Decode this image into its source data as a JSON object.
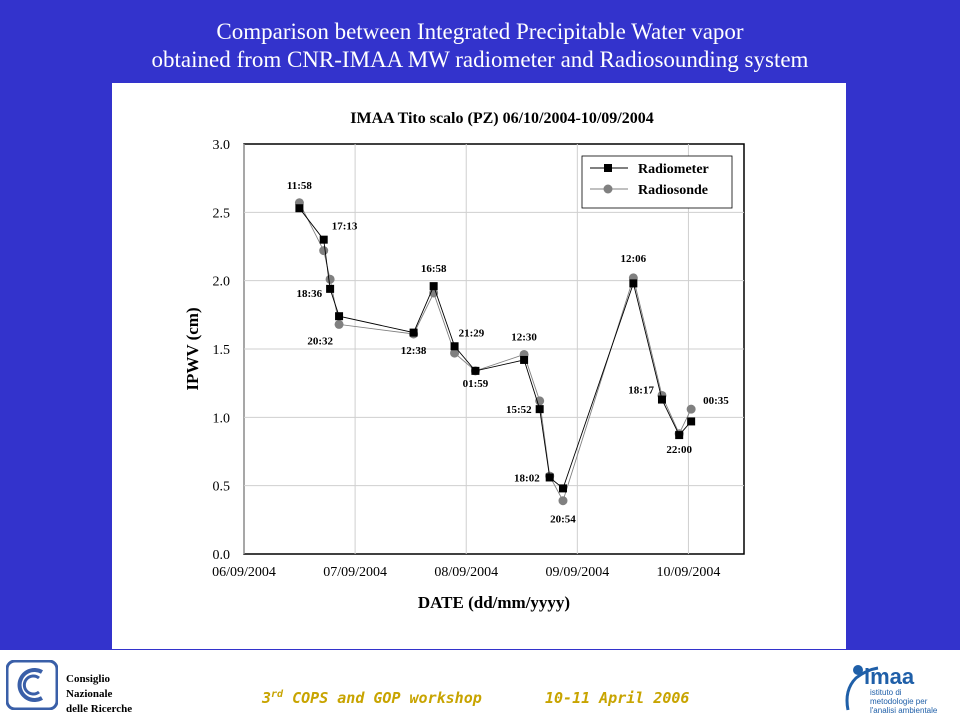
{
  "header": {
    "title_line1": "Comparison between Integrated Precipitable Water vapor",
    "title_line2": "obtained from CNR-IMAA MW radiometer and Radiosounding system"
  },
  "footer": {
    "cnr_line1": "Consiglio",
    "cnr_line2": "Nazionale",
    "cnr_line3": "delle Ricerche",
    "workshop_ordinal": "3",
    "workshop_suffix": "rd",
    "workshop_rest": " COPS and GOP workshop       10-11 April 2006",
    "imaa_logo_letters": "imaa",
    "imaa_logo_text1": "istituto di",
    "imaa_logo_text2": "metodologie per",
    "imaa_logo_text3": "l'analisi ambientale"
  },
  "colors": {
    "background": "#3333cc",
    "title_text": "#ffffff",
    "workshop_text": "#c8a400",
    "radiometer": "#000000",
    "radiosonde": "#808080",
    "imaa_logo": "#1f5fa8"
  },
  "chart_data": {
    "type": "line",
    "title": "IMAA Tito scalo (PZ)  06/10/2004-10/09/2004",
    "xlabel": "DATE (dd/mm/yyyy)",
    "ylabel": "IPWV (cm)",
    "x_ticks": [
      "06/09/2004",
      "07/09/2004",
      "08/09/2004",
      "09/09/2004",
      "10/09/2004"
    ],
    "y_ticks": [
      "0.0",
      "0.5",
      "1.0",
      "1.5",
      "2.0",
      "2.5",
      "3.0"
    ],
    "ylim": [
      0,
      3
    ],
    "xlim": [
      "06/09/2004 00:00",
      "10/09/2004 12:00"
    ],
    "grid": true,
    "legend_position": "top-right",
    "x": [
      "06/09/2004 11:58",
      "06/09/2004 17:13",
      "06/09/2004 18:36",
      "06/09/2004 20:32",
      "07/09/2004 12:38",
      "07/09/2004 16:58",
      "07/09/2004 21:29",
      "08/09/2004 01:59",
      "08/09/2004 12:30",
      "08/09/2004 15:52",
      "08/09/2004 18:02",
      "08/09/2004 20:54",
      "09/09/2004 12:06",
      "09/09/2004 18:17",
      "09/09/2004 22:00",
      "10/09/2004 00:35"
    ],
    "time_labels": [
      "11:58",
      "17:13",
      "18:36",
      "20:32",
      "12:38",
      "16:58",
      "21:29",
      "01:59",
      "12:30",
      "15:52",
      "18:02",
      "20:54",
      "12:06",
      "18:17",
      "22:00",
      "00:35"
    ],
    "series": [
      {
        "name": "Radiometer",
        "marker": "square",
        "color": "#000000",
        "values": [
          2.53,
          2.3,
          1.94,
          1.74,
          1.62,
          1.96,
          1.52,
          1.34,
          1.42,
          1.06,
          0.56,
          0.48,
          1.98,
          1.13,
          0.87,
          0.97
        ]
      },
      {
        "name": "Radiosonde",
        "marker": "circle",
        "color": "#808080",
        "values": [
          2.57,
          2.22,
          2.01,
          1.68,
          1.61,
          1.91,
          1.47,
          1.34,
          1.46,
          1.12,
          0.57,
          0.39,
          2.02,
          1.16,
          0.88,
          1.06
        ]
      }
    ]
  }
}
